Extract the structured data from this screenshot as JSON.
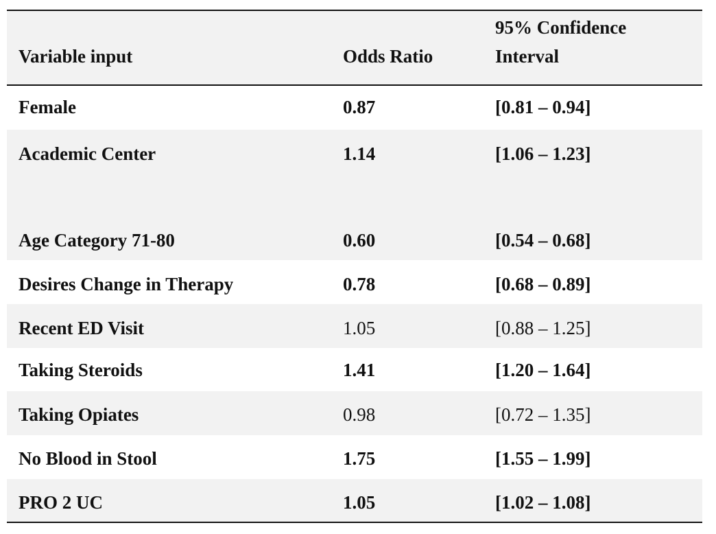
{
  "table": {
    "headers": {
      "variable": "Variable input",
      "odds": "Odds Ratio",
      "ci_line1": "95% Confidence",
      "ci_line2": "Interval"
    },
    "rows": [
      {
        "variable": "Female",
        "odds": "0.87",
        "ci": "[0.81 – 0.94]",
        "bold": true
      },
      {
        "variable": "Academic Center",
        "odds": "1.14",
        "ci": "[1.06 – 1.23]",
        "bold": true
      },
      {
        "variable": "Age Category 71-80",
        "odds": "0.60",
        "ci": "[0.54 – 0.68]",
        "bold": true
      },
      {
        "variable": "Desires Change in Therapy",
        "odds": "0.78",
        "ci": "[0.68 – 0.89]",
        "bold": true
      },
      {
        "variable": "Recent ED Visit",
        "odds": "1.05",
        "ci": "[0.88 – 1.25]",
        "bold": false
      },
      {
        "variable": "Taking Steroids",
        "odds": "1.41",
        "ci": "[1.20 – 1.64]",
        "bold": true
      },
      {
        "variable": "Taking Opiates",
        "odds": "0.98",
        "ci": "[0.72 – 1.35]",
        "bold": false
      },
      {
        "variable": "No Blood in Stool",
        "odds": "1.75",
        "ci": "[1.55 – 1.99]",
        "bold": true
      },
      {
        "variable": "PRO 2 UC",
        "odds": "1.05",
        "ci": "[1.02 – 1.08]",
        "bold": true
      }
    ]
  }
}
